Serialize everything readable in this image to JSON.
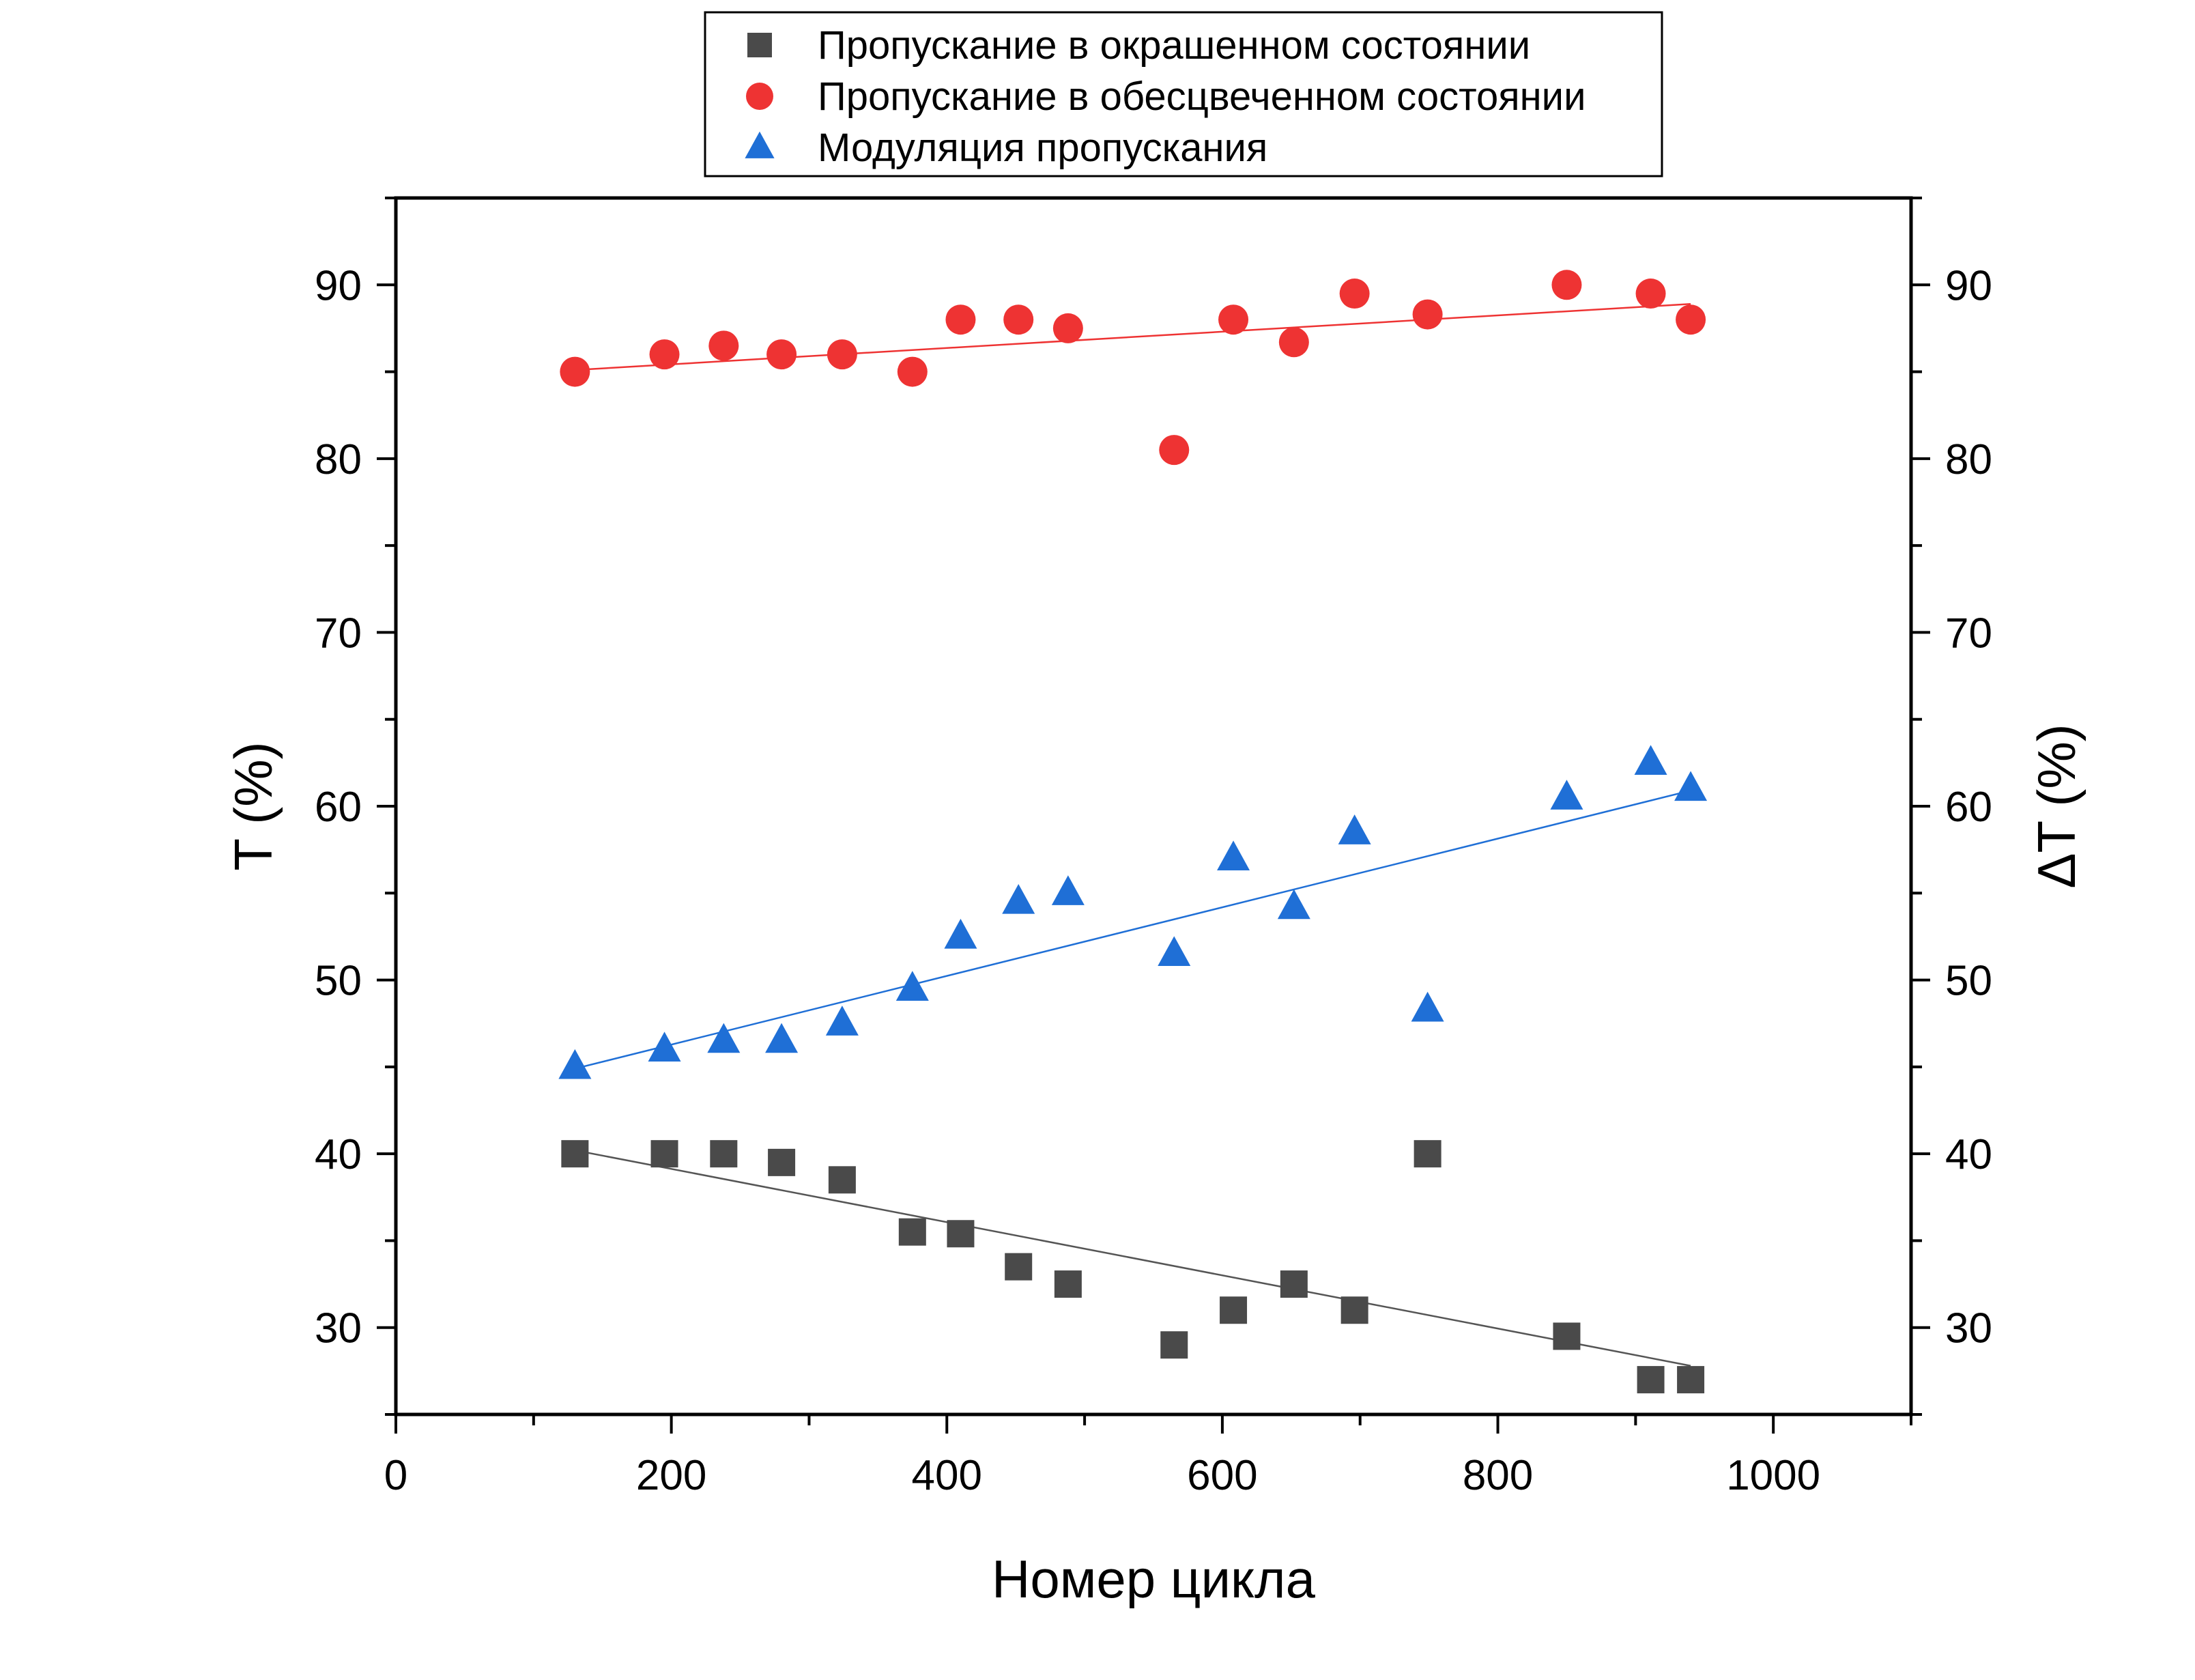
{
  "chart_data": {
    "type": "scatter",
    "x_label": "Номер цикла",
    "y_label_left": "T (%)",
    "y_label_right": "ΔT (%)",
    "xlim": [
      0,
      1100
    ],
    "ylim": [
      25,
      95
    ],
    "x_ticks": [
      0,
      200,
      400,
      600,
      800,
      1000
    ],
    "y_ticks": [
      30,
      40,
      50,
      60,
      70,
      80,
      90
    ],
    "grid": false,
    "legend_position": "top-center",
    "series": [
      {
        "name": "Пропускание в окрашенном состоянии",
        "marker": "square",
        "color": "#4a4a4a",
        "points": [
          [
            130,
            40.0
          ],
          [
            195,
            40.0
          ],
          [
            238,
            40.0
          ],
          [
            280,
            39.5
          ],
          [
            324,
            38.5
          ],
          [
            375,
            35.5
          ],
          [
            410,
            35.4
          ],
          [
            452,
            33.5
          ],
          [
            488,
            32.5
          ],
          [
            565,
            29.0
          ],
          [
            608,
            31.0
          ],
          [
            652,
            32.5
          ],
          [
            696,
            31.0
          ],
          [
            749,
            40.0
          ],
          [
            850,
            29.5
          ],
          [
            911,
            27.0
          ],
          [
            940,
            27.0
          ]
        ],
        "trend": {
          "color": "#555555",
          "from": [
            130,
            40.2
          ],
          "to": [
            940,
            27.8
          ]
        }
      },
      {
        "name": "Пропускание в обесцвеченном состоянии",
        "marker": "circle",
        "color": "#ee3333",
        "points": [
          [
            130,
            85.0
          ],
          [
            195,
            86.0
          ],
          [
            238,
            86.5
          ],
          [
            280,
            86.0
          ],
          [
            324,
            86.0
          ],
          [
            375,
            85.0
          ],
          [
            410,
            88.0
          ],
          [
            452,
            88.0
          ],
          [
            488,
            87.5
          ],
          [
            565,
            80.5
          ],
          [
            608,
            88.0
          ],
          [
            652,
            86.7
          ],
          [
            696,
            89.5
          ],
          [
            749,
            88.3
          ],
          [
            850,
            90.0
          ],
          [
            911,
            89.5
          ],
          [
            940,
            88.0
          ]
        ],
        "trend": {
          "color": "#ee3333",
          "from": [
            130,
            85.1
          ],
          "to": [
            940,
            88.9
          ]
        }
      },
      {
        "name": "Модуляция пропускания",
        "marker": "triangle",
        "color": "#1f6fd6",
        "points": [
          [
            130,
            45.0
          ],
          [
            195,
            46.0
          ],
          [
            238,
            46.5
          ],
          [
            280,
            46.5
          ],
          [
            324,
            47.5
          ],
          [
            375,
            49.5
          ],
          [
            410,
            52.5
          ],
          [
            452,
            54.5
          ],
          [
            488,
            55.0
          ],
          [
            565,
            51.5
          ],
          [
            608,
            57.0
          ],
          [
            652,
            54.2
          ],
          [
            696,
            58.5
          ],
          [
            749,
            48.3
          ],
          [
            850,
            60.5
          ],
          [
            911,
            62.5
          ],
          [
            940,
            61.0
          ]
        ],
        "trend": {
          "color": "#1f6fd6",
          "from": [
            130,
            44.9
          ],
          "to": [
            940,
            60.9
          ]
        }
      }
    ]
  }
}
